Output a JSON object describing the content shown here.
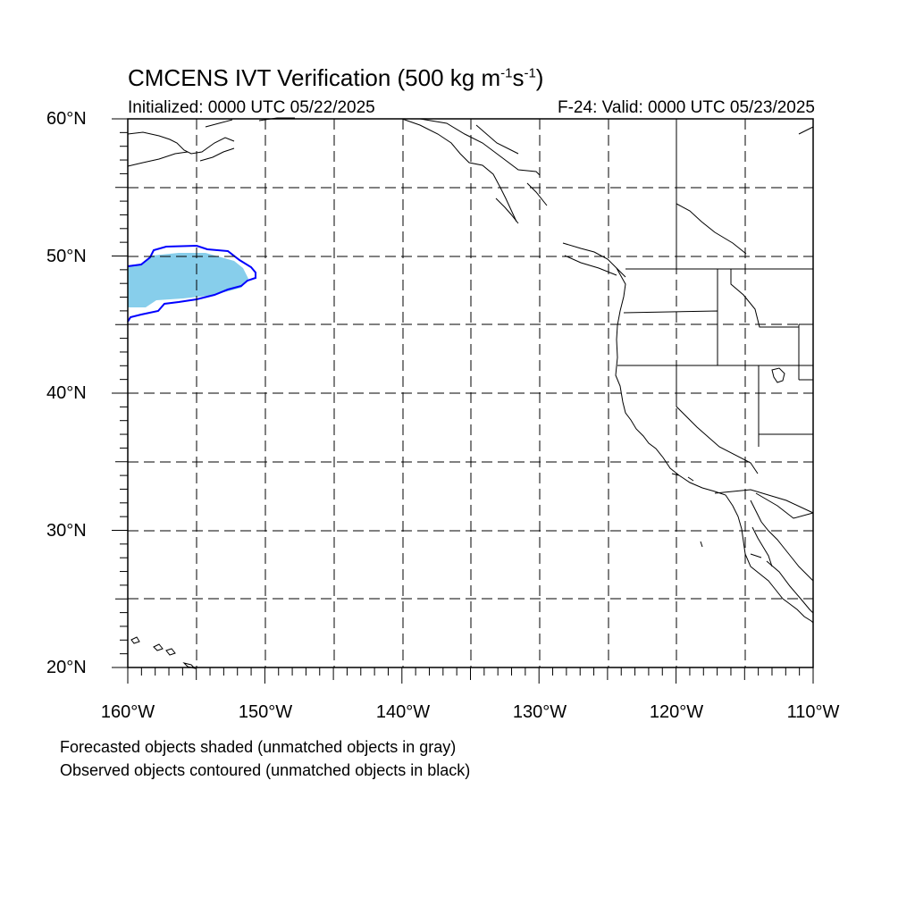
{
  "title": {
    "main": "CMCENS IVT Verification (500 kg m",
    "sup1": "-1",
    "mid": "s",
    "sup2": "-1",
    "end": ")"
  },
  "subtitle_left": "Initialized: 0000 UTC 05/22/2025",
  "subtitle_right": "F-24: Valid: 0000 UTC 05/23/2025",
  "lat_labels": [
    "60°N",
    "50°N",
    "40°N",
    "30°N",
    "20°N"
  ],
  "lon_labels": [
    "160°W",
    "150°W",
    "140°W",
    "130°W",
    "120°W",
    "110°W"
  ],
  "footnotes": [
    "Forecasted objects shaded (unmatched objects in gray)",
    "Observed objects contoured (unmatched objects in black)"
  ],
  "colors": {
    "forecast_fill": "#87ceeb",
    "observed_contour": "#0000ff",
    "coastline": "#000000",
    "grid": "#000000"
  },
  "map_extent": {
    "lon_min": -160,
    "lon_max": -110,
    "lat_min": 20,
    "lat_max": 60
  }
}
